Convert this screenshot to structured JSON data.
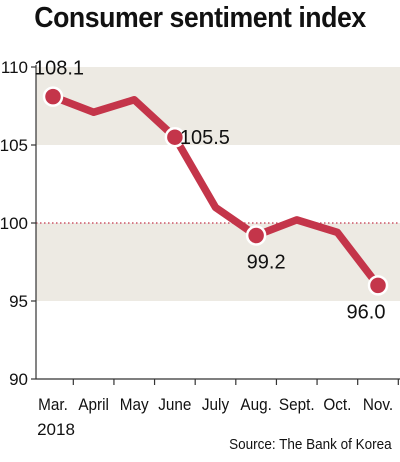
{
  "title": "Consumer sentiment index",
  "source": "Source: The Bank of Korea",
  "year_label": "2018",
  "colors": {
    "line": "#c4354a",
    "band": "#edeae3",
    "reference_line": "#c4354a",
    "axis": "#333333",
    "text": "#111111"
  },
  "chart_data": {
    "type": "line",
    "title": "Consumer sentiment index",
    "categories": [
      "Mar.",
      "April",
      "May",
      "June",
      "July",
      "Aug.",
      "Sept.",
      "Oct.",
      "Nov."
    ],
    "series": [
      {
        "values": [
          108.1,
          107.1,
          107.9,
          105.5,
          101.0,
          99.2,
          100.2,
          99.4,
          96.0
        ]
      }
    ],
    "labeled_points": [
      {
        "index": 0,
        "label": "108.1"
      },
      {
        "index": 3,
        "label": "105.5"
      },
      {
        "index": 5,
        "label": "99.2"
      },
      {
        "index": 8,
        "label": "96.0"
      }
    ],
    "reference_line": 100,
    "bands": [
      [
        105,
        110
      ],
      [
        95,
        100
      ]
    ],
    "ylim": [
      90,
      110
    ],
    "yticks": [
      90,
      95,
      100,
      105,
      110
    ],
    "ytick_labels": [
      "90",
      "95",
      "100",
      "105",
      "110"
    ],
    "xlabel": "",
    "ylabel": "",
    "grid": false
  }
}
